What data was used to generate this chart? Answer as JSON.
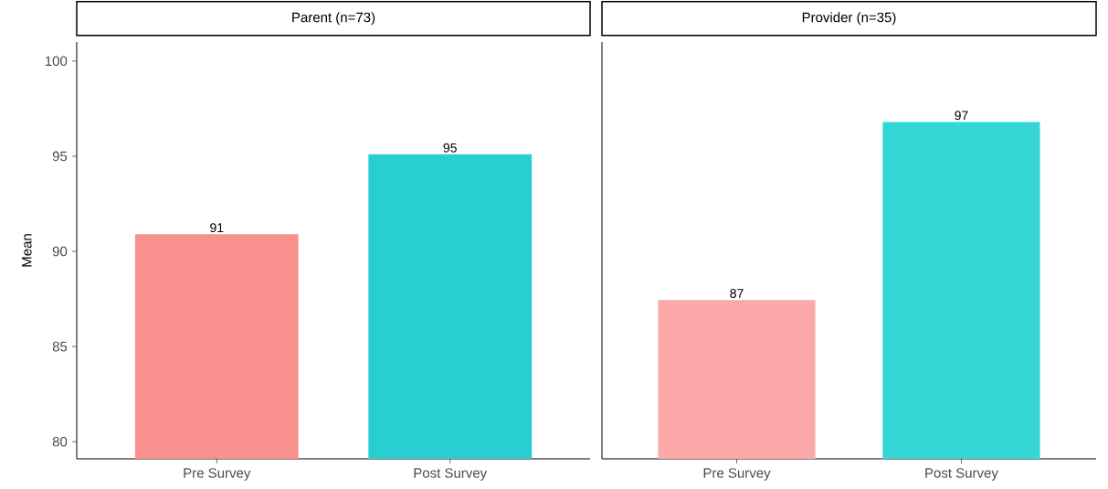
{
  "chart_data": [
    {
      "type": "bar",
      "title": "Parent (n=73)",
      "ylabel": "Mean",
      "categories": [
        "Pre Survey",
        "Post Survey"
      ],
      "values": [
        90.9,
        95.1
      ],
      "value_labels": [
        "91",
        "95"
      ],
      "colors": [
        "#f8918e",
        "#29ced0"
      ],
      "ylim": [
        79.1,
        101
      ],
      "yticks": [
        80,
        85,
        90,
        95,
        100
      ],
      "grid": false
    },
    {
      "type": "bar",
      "title": "Provider (n=35)",
      "categories": [
        "Pre Survey",
        "Post Survey"
      ],
      "values": [
        87.45,
        96.8
      ],
      "value_labels": [
        "87",
        "97"
      ],
      "colors": [
        "#fba9a9",
        "#35d6d6"
      ],
      "ylim": [
        79.1,
        101
      ],
      "tick_labels": "x",
      "grid": false
    }
  ]
}
